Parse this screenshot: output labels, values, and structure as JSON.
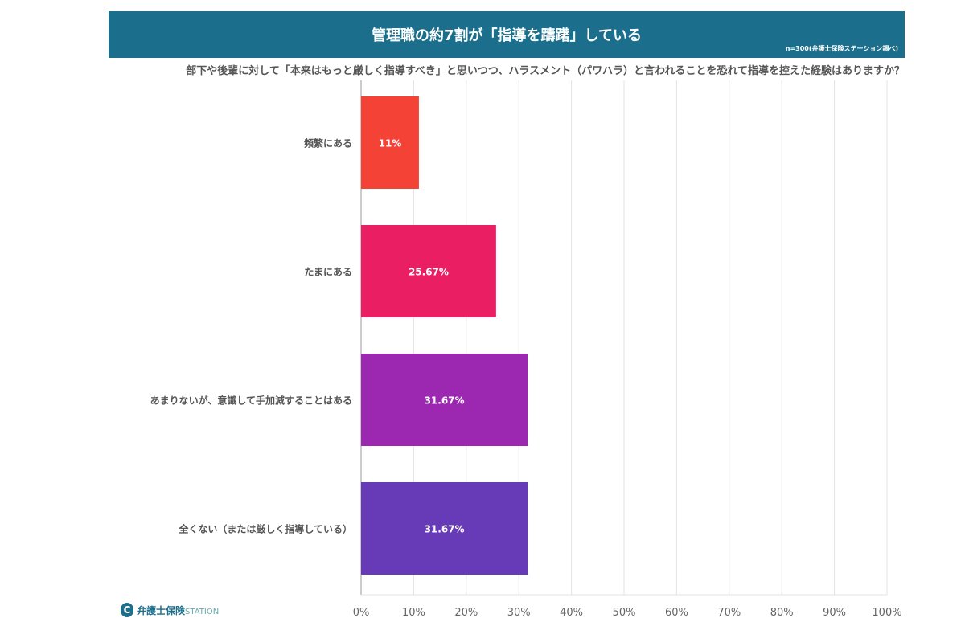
{
  "chart_data": {
    "type": "bar",
    "orientation": "horizontal",
    "title": "管理職の約7割が「指導を躊躇」している",
    "note": "n=300(弁護士保険ステーション調べ)",
    "question": "部下や後輩に対して「本来はもっと厳しく指導すべき」と思いつつ、ハラスメント（パワハラ）と言われることを恐れて指導を控えた経験はありますか？",
    "categories": [
      "頻繁にある",
      "たまにある",
      "あまりないが、意識して手加減することはある",
      "全くない（または厳しく指導している）"
    ],
    "values": [
      11,
      25.67,
      31.67,
      31.67
    ],
    "data_labels": [
      "11%",
      "25.67%",
      "31.67%",
      "31.67%"
    ],
    "colors": [
      "#f44336",
      "#e91e63",
      "#9c27b0",
      "#673ab7"
    ],
    "xlim": [
      0,
      100
    ],
    "ticks": [
      "0%",
      "10%",
      "20%",
      "30%",
      "40%",
      "50%",
      "60%",
      "70%",
      "80%",
      "90%",
      "100%"
    ],
    "grid": true
  },
  "logo": {
    "name": "弁護士保険",
    "suffix": "STATION"
  }
}
